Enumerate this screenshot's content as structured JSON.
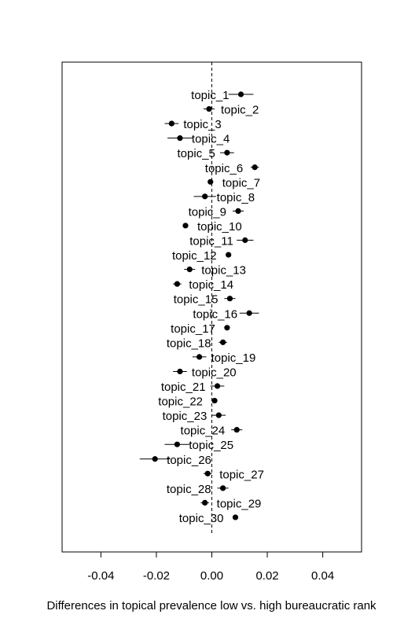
{
  "chart_data": {
    "type": "scatter",
    "subtype": "coefficient-plot-with-error-bars",
    "title": "",
    "xlabel": "Differences in topical prevalence low vs. high bureaucratic rank",
    "ylabel": "",
    "xlim": [
      -0.054,
      0.054
    ],
    "xticks": [
      -0.04,
      -0.02,
      0.0,
      0.02,
      0.04
    ],
    "xtick_labels": [
      "-0.04",
      "-0.02",
      "0.00",
      "0.02",
      "0.04"
    ],
    "reference_line": 0,
    "grid": false,
    "series": [
      {
        "points": [
          {
            "label": "topic_1",
            "estimate": 0.0105,
            "ci": [
              0.006,
              0.015
            ],
            "label_side": "left"
          },
          {
            "label": "topic_2",
            "estimate": -0.001,
            "ci": [
              -0.003,
              0.001
            ],
            "label_side": "right"
          },
          {
            "label": "topic_3",
            "estimate": -0.0145,
            "ci": [
              -0.017,
              -0.012
            ],
            "label_side": "right"
          },
          {
            "label": "topic_4",
            "estimate": -0.0115,
            "ci": [
              -0.016,
              -0.007
            ],
            "label_side": "right"
          },
          {
            "label": "topic_5",
            "estimate": 0.0055,
            "ci": [
              0.003,
              0.008
            ],
            "label_side": "left"
          },
          {
            "label": "topic_6",
            "estimate": 0.0155,
            "ci": [
              0.014,
              0.017
            ],
            "label_side": "left"
          },
          {
            "label": "topic_7",
            "estimate": -0.0005,
            "ci": [
              -0.0015,
              0.0005
            ],
            "label_side": "right"
          },
          {
            "label": "topic_8",
            "estimate": -0.0025,
            "ci": [
              -0.0065,
              0.0015
            ],
            "label_side": "right"
          },
          {
            "label": "topic_9",
            "estimate": 0.0095,
            "ci": [
              0.0075,
              0.0115
            ],
            "label_side": "left"
          },
          {
            "label": "topic_10",
            "estimate": -0.0095,
            "ci": [
              -0.0105,
              -0.0085
            ],
            "label_side": "right"
          },
          {
            "label": "topic_11",
            "estimate": 0.012,
            "ci": [
              0.009,
              0.015
            ],
            "label_side": "left"
          },
          {
            "label": "topic_12",
            "estimate": 0.006,
            "ci": [
              0.005,
              0.007
            ],
            "label_side": "left"
          },
          {
            "label": "topic_13",
            "estimate": -0.008,
            "ci": [
              -0.01,
              -0.006
            ],
            "label_side": "right"
          },
          {
            "label": "topic_14",
            "estimate": -0.0125,
            "ci": [
              -0.014,
              -0.011
            ],
            "label_side": "right"
          },
          {
            "label": "topic_15",
            "estimate": 0.0065,
            "ci": [
              0.0045,
              0.0085
            ],
            "label_side": "left"
          },
          {
            "label": "topic_16",
            "estimate": 0.0135,
            "ci": [
              0.01,
              0.017
            ],
            "label_side": "left"
          },
          {
            "label": "topic_17",
            "estimate": 0.0055,
            "ci": [
              0.0045,
              0.0065
            ],
            "label_side": "left"
          },
          {
            "label": "topic_18",
            "estimate": 0.004,
            "ci": [
              0.0025,
              0.0055
            ],
            "label_side": "left"
          },
          {
            "label": "topic_19",
            "estimate": -0.0045,
            "ci": [
              -0.007,
              -0.002
            ],
            "label_side": "right"
          },
          {
            "label": "topic_20",
            "estimate": -0.0115,
            "ci": [
              -0.014,
              -0.009
            ],
            "label_side": "right"
          },
          {
            "label": "topic_21",
            "estimate": 0.002,
            "ci": [
              -0.0005,
              0.0045
            ],
            "label_side": "left"
          },
          {
            "label": "topic_22",
            "estimate": 0.001,
            "ci": [
              0.0,
              0.002
            ],
            "label_side": "left"
          },
          {
            "label": "topic_23",
            "estimate": 0.0025,
            "ci": [
              0.0,
              0.005
            ],
            "label_side": "left"
          },
          {
            "label": "topic_24",
            "estimate": 0.009,
            "ci": [
              0.007,
              0.011
            ],
            "label_side": "left"
          },
          {
            "label": "topic_25",
            "estimate": -0.0125,
            "ci": [
              -0.017,
              -0.008
            ],
            "label_side": "right"
          },
          {
            "label": "topic_26",
            "estimate": -0.0205,
            "ci": [
              -0.026,
              -0.015
            ],
            "label_side": "right"
          },
          {
            "label": "topic_27",
            "estimate": -0.0015,
            "ci": [
              -0.003,
              0.0
            ],
            "label_side": "right"
          },
          {
            "label": "topic_28",
            "estimate": 0.004,
            "ci": [
              0.002,
              0.006
            ],
            "label_side": "left"
          },
          {
            "label": "topic_29",
            "estimate": -0.0025,
            "ci": [
              -0.004,
              -0.001
            ],
            "label_side": "right"
          },
          {
            "label": "topic_30",
            "estimate": 0.0085,
            "ci": [
              0.008,
              0.009
            ],
            "label_side": "left"
          }
        ]
      }
    ]
  }
}
